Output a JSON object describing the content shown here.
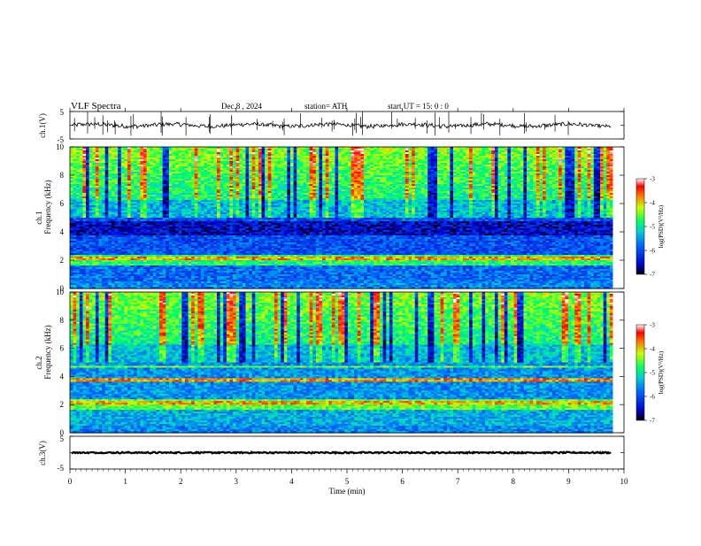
{
  "header": {
    "title": "VLF  Spectra",
    "date": "Dec.8  , 2024",
    "station": "station= ATH",
    "start": "start  UT  =    15: 0  : 0"
  },
  "chart_data": [
    {
      "type": "line",
      "panel": "ch1-waveform",
      "ylabel": "ch.1(V)",
      "ylim": [
        -5,
        5
      ],
      "yticks": [
        "5",
        "-5"
      ],
      "baseline": 0,
      "color": "#000000"
    },
    {
      "type": "heatmap",
      "panel": "ch1-spectrogram",
      "ylabel": "ch.1\nFrequency (kHz)",
      "ylabel_top": "ch.1",
      "ylabel_main": "Frequency (kHz)",
      "ylim": [
        0,
        10
      ],
      "yticks": [
        "0",
        "2",
        "4",
        "6",
        "8",
        "10"
      ],
      "colorbar": {
        "label": "log(PSD)(V²/Hz)",
        "range": [
          -7,
          -3
        ],
        "ticks": [
          "-3",
          "-4",
          "-5",
          "-6",
          "-7"
        ],
        "colors": [
          "#000000",
          "#0000ff",
          "#00b4ff",
          "#00ff80",
          "#c8ff00",
          "#ff7800",
          "#ff0000",
          "#ffffff"
        ]
      },
      "features": {
        "hum_band_khz": [
          1.7,
          2.3
        ],
        "dark_band_khz": [
          3.8,
          4.6
        ],
        "sferic_peak_khz": [
          6,
          10
        ]
      }
    },
    {
      "type": "heatmap",
      "panel": "ch2-spectrogram",
      "ylabel_top": "ch.2",
      "ylabel_main": "Frequency (kHz)",
      "ylim": [
        0,
        10
      ],
      "yticks": [
        "0",
        "2",
        "4",
        "6",
        "8",
        "10"
      ],
      "colorbar": {
        "label": "log(PSD)(V²/Hz)",
        "range": [
          -7,
          -3
        ],
        "ticks": [
          "-3",
          "-4",
          "-5",
          "-6",
          "-7"
        ]
      },
      "features": {
        "hum_band_khz": [
          1.6,
          2.3
        ],
        "line_khz": 3.8,
        "sferic_peak_khz": [
          6,
          10
        ]
      }
    },
    {
      "type": "line",
      "panel": "ch3-waveform",
      "ylabel": "ch.3(V)",
      "ylim": [
        -5,
        5
      ],
      "yticks": [
        "5",
        "-5"
      ],
      "baseline": 0,
      "color": "#000000"
    }
  ],
  "xaxis": {
    "label": "Time  (min)",
    "range": [
      0,
      10
    ],
    "ticks": [
      "0",
      "1",
      "2",
      "3",
      "4",
      "5",
      "6",
      "7",
      "8",
      "9",
      "10"
    ],
    "data_end_min": 9.8
  }
}
